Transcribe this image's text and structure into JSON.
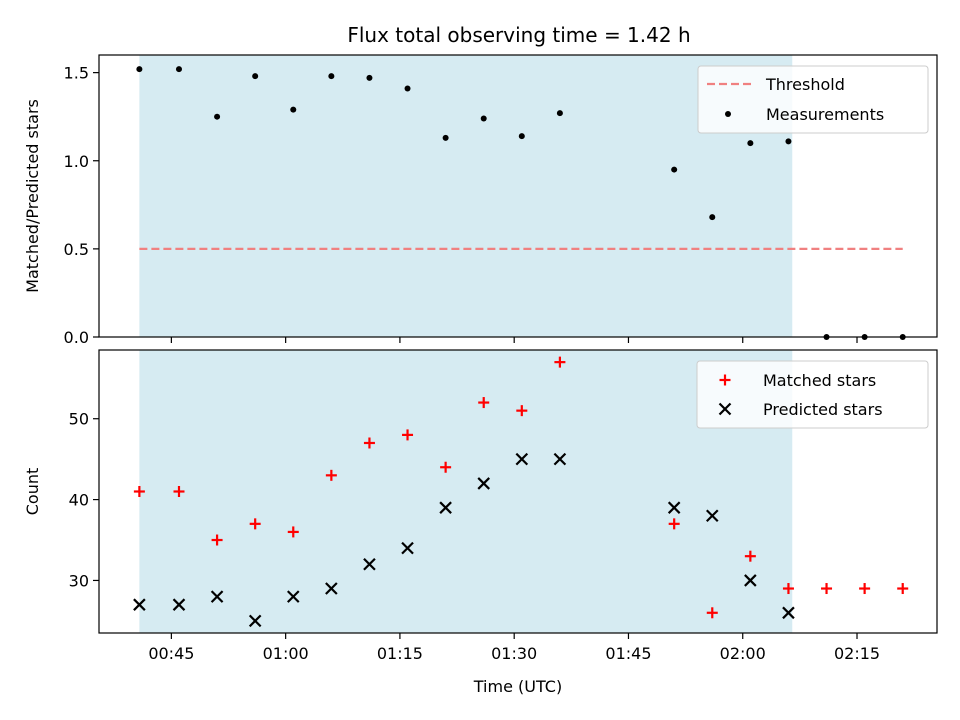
{
  "chart_data": {
    "title": "Flux total observing time = 1.42 h",
    "xlabel": "Time (UTC)",
    "x_ticks": [
      "00:45",
      "01:00",
      "01:15",
      "01:30",
      "01:45",
      "02:00",
      "02:15"
    ],
    "x_tick_minutes": [
      45,
      60,
      75,
      90,
      105,
      120,
      135
    ],
    "xlim_minutes": [
      35.5,
      145.5
    ],
    "shaded_span_minutes": [
      40.8,
      126.5
    ],
    "shade_color": "#add8e6",
    "times": [
      "00:40:48",
      "00:46:00",
      "00:51:00",
      "00:56:00",
      "01:01:00",
      "01:06:00",
      "01:11:00",
      "01:16:00",
      "01:21:00",
      "01:26:00",
      "01:31:00",
      "01:36:00",
      "01:51:00",
      "01:56:00",
      "02:01:00",
      "02:06:00",
      "02:11:00",
      "02:16:00",
      "02:21:00"
    ],
    "times_minutes": [
      40.8,
      46,
      51,
      56,
      61,
      66,
      71,
      76,
      81,
      86,
      91,
      96,
      111,
      116,
      121,
      126,
      131,
      136,
      141
    ],
    "panels": [
      {
        "type": "scatter",
        "ylabel": "Matched/Predicted stars",
        "ylim": [
          0,
          1.6
        ],
        "y_ticks": [
          "0.0",
          "0.5",
          "1.0",
          "1.5"
        ],
        "y_tick_values": [
          0,
          0.5,
          1.0,
          1.5
        ],
        "threshold": {
          "name": "Threshold",
          "value": 0.5,
          "x_range_minutes": [
            40.8,
            141
          ],
          "color": "#f08080"
        },
        "series": [
          {
            "name": "Measurements",
            "color": "#000000",
            "marker": "dot",
            "values": [
              1.52,
              1.52,
              1.25,
              1.48,
              1.29,
              1.48,
              1.47,
              1.41,
              1.13,
              1.24,
              1.14,
              1.27,
              0.95,
              0.68,
              1.1,
              1.11,
              0.0,
              0.0,
              0.0
            ]
          }
        ],
        "legend_position": "upper right"
      },
      {
        "type": "scatter",
        "ylabel": "Count",
        "ylim": [
          23.5,
          58.5
        ],
        "y_ticks": [
          "30",
          "40",
          "50"
        ],
        "y_tick_values": [
          30,
          40,
          50
        ],
        "series": [
          {
            "name": "Matched stars",
            "color": "#ff0000",
            "marker": "plus",
            "values": [
              41,
              41,
              35,
              37,
              36,
              43,
              47,
              48,
              44,
              52,
              51,
              57,
              37,
              26,
              33,
              29,
              29,
              29,
              29
            ]
          },
          {
            "name": "Predicted stars",
            "color": "#000000",
            "marker": "x",
            "values": [
              27,
              27,
              28,
              25,
              28,
              29,
              32,
              34,
              39,
              42,
              45,
              45,
              39,
              38,
              30,
              26,
              null,
              null,
              null
            ]
          }
        ],
        "legend_position": "upper right"
      }
    ]
  }
}
